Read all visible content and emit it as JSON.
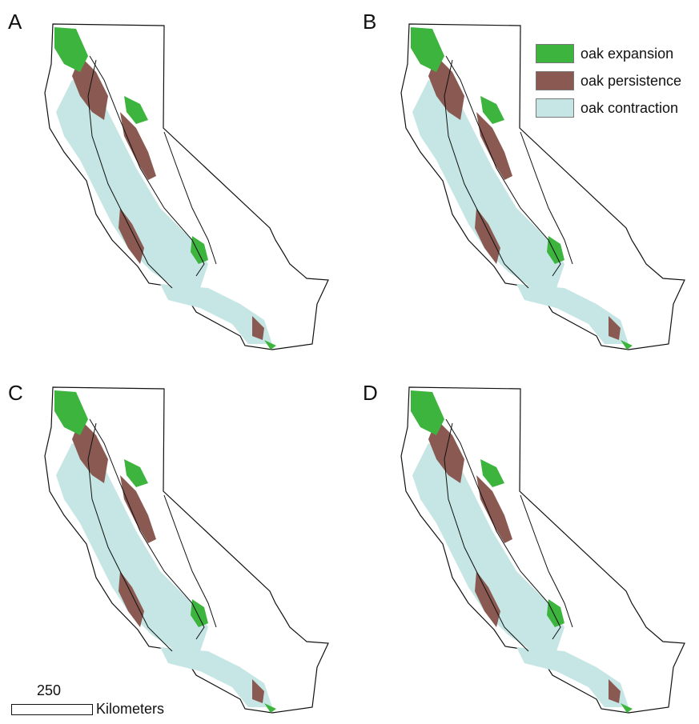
{
  "panels": [
    {
      "label": "A"
    },
    {
      "label": "B"
    },
    {
      "label": "C"
    },
    {
      "label": "D"
    }
  ],
  "legend": {
    "items": [
      {
        "label": "oak expansion",
        "color": "#3db43d"
      },
      {
        "label": "oak persistence",
        "color": "#8a5a52"
      },
      {
        "label": "oak contraction",
        "color": "#c5e6e4"
      }
    ]
  },
  "scalebar": {
    "value": "250",
    "unit": "Kilometers"
  }
}
